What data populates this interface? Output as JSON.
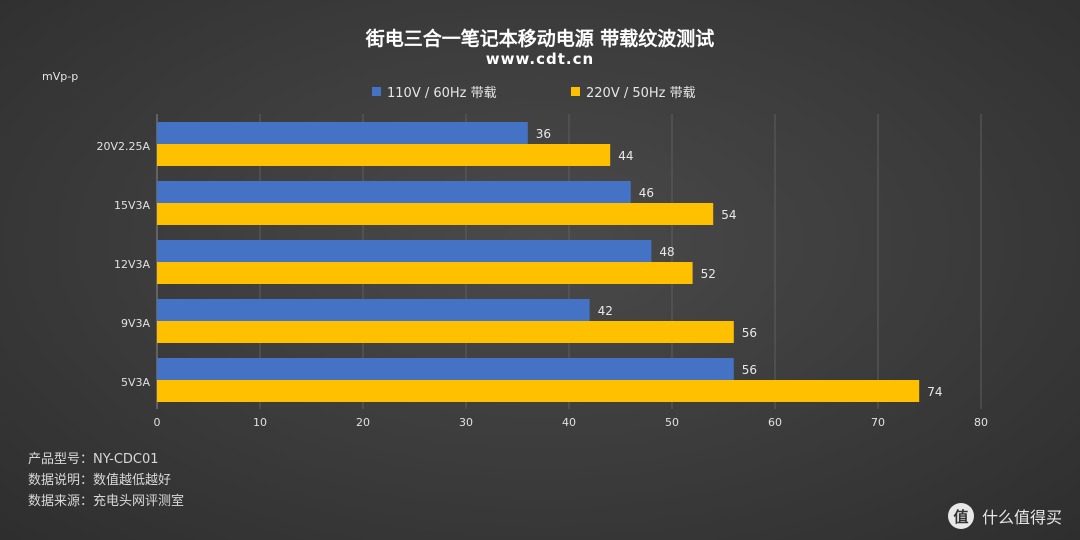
{
  "header": {
    "title": "街电三合一笔记本移动电源 带载纹波测试",
    "site": "www.cdt.cn",
    "unit": "mVp-p"
  },
  "colors": {
    "series1": "#4472c4",
    "series2": "#ffc000"
  },
  "chart_data": {
    "type": "bar",
    "orientation": "horizontal",
    "title": "街电三合一笔记本移动电源 带载纹波测试",
    "subtitle": "www.cdt.cn",
    "ylabel": "mVp-p",
    "categories": [
      "20V2.25A",
      "15V3A",
      "12V3A",
      "9V3A",
      "5V3A"
    ],
    "series": [
      {
        "name": "110V / 60Hz 带载",
        "values": [
          36,
          46,
          48,
          42,
          56
        ]
      },
      {
        "name": "220V / 50Hz 带载",
        "values": [
          44,
          54,
          52,
          56,
          74
        ]
      }
    ],
    "xlim": [
      0,
      80
    ],
    "xticks": [
      0,
      10,
      20,
      30,
      40,
      50,
      60,
      70,
      80
    ],
    "grid": true,
    "legend_position": "top"
  },
  "footer": {
    "lines": [
      "产品型号：NY-CDC01",
      "数据说明：数值越低越好",
      "数据来源：充电头网评测室"
    ]
  },
  "watermark": {
    "badge": "值",
    "text": "什么值得买"
  }
}
